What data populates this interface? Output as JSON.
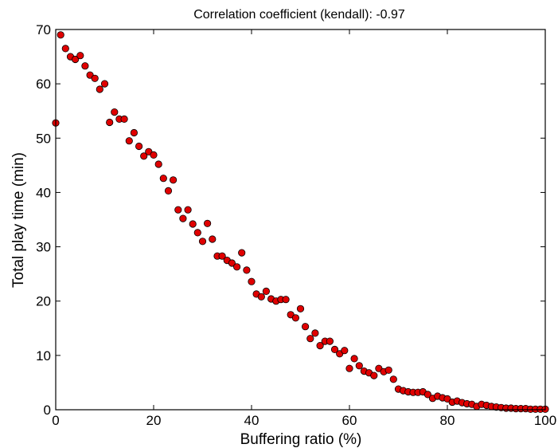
{
  "chart_data": {
    "type": "scatter",
    "title": "Correlation coefficient (kendall): -0.97",
    "xlabel": "Buffering ratio (%)",
    "ylabel": "Total play time (min)",
    "xlim": [
      0,
      100
    ],
    "ylim": [
      0,
      70
    ],
    "x_ticks": [
      0,
      20,
      40,
      60,
      80,
      100
    ],
    "y_ticks": [
      0,
      10,
      20,
      30,
      40,
      50,
      60,
      70
    ],
    "grid": false,
    "marker_color": "#e00000",
    "marker_edge_color": "#000000",
    "points": [
      [
        0,
        52.8
      ],
      [
        1,
        69
      ],
      [
        2,
        66.5
      ],
      [
        3,
        65
      ],
      [
        4,
        64.5
      ],
      [
        5,
        65.2
      ],
      [
        6,
        63.3
      ],
      [
        7,
        61.6
      ],
      [
        8,
        61
      ],
      [
        9,
        59
      ],
      [
        10,
        60
      ],
      [
        11,
        52.9
      ],
      [
        12,
        54.8
      ],
      [
        13,
        53.5
      ],
      [
        14,
        53.5
      ],
      [
        15,
        49.5
      ],
      [
        16,
        51
      ],
      [
        17,
        48.5
      ],
      [
        18,
        46.7
      ],
      [
        19,
        47.5
      ],
      [
        20,
        46.9
      ],
      [
        21,
        45.2
      ],
      [
        22,
        42.6
      ],
      [
        23,
        40.3
      ],
      [
        24,
        42.3
      ],
      [
        25,
        36.8
      ],
      [
        26,
        35.2
      ],
      [
        27,
        36.8
      ],
      [
        28,
        34.2
      ],
      [
        29,
        32.6
      ],
      [
        30,
        31
      ],
      [
        31,
        34.3
      ],
      [
        32,
        31.4
      ],
      [
        33,
        28.3
      ],
      [
        34,
        28.3
      ],
      [
        35,
        27.5
      ],
      [
        36,
        27
      ],
      [
        37,
        26.3
      ],
      [
        38,
        28.9
      ],
      [
        39,
        25.7
      ],
      [
        40,
        23.6
      ],
      [
        41,
        21.3
      ],
      [
        42,
        20.8
      ],
      [
        43,
        21.8
      ],
      [
        44,
        20.4
      ],
      [
        45,
        20
      ],
      [
        46,
        20.3
      ],
      [
        47,
        20.3
      ],
      [
        48,
        17.5
      ],
      [
        49,
        16.9
      ],
      [
        50,
        18.6
      ],
      [
        51,
        15.3
      ],
      [
        52,
        13.1
      ],
      [
        53,
        14.1
      ],
      [
        54,
        11.8
      ],
      [
        55,
        12.6
      ],
      [
        56,
        12.6
      ],
      [
        57,
        11.1
      ],
      [
        58,
        10.3
      ],
      [
        59,
        10.9
      ],
      [
        60,
        7.6
      ],
      [
        61,
        9.4
      ],
      [
        62,
        8.1
      ],
      [
        63,
        7.1
      ],
      [
        64,
        6.8
      ],
      [
        65,
        6.3
      ],
      [
        66,
        7.6
      ],
      [
        67,
        7
      ],
      [
        68,
        7.3
      ],
      [
        69,
        5.6
      ],
      [
        70,
        3.8
      ],
      [
        71,
        3.5
      ],
      [
        72,
        3.3
      ],
      [
        73,
        3.2
      ],
      [
        74,
        3.2
      ],
      [
        75,
        3.3
      ],
      [
        76,
        2.8
      ],
      [
        77,
        2.1
      ],
      [
        78,
        2.5
      ],
      [
        79,
        2.2
      ],
      [
        80,
        2
      ],
      [
        81,
        1.4
      ],
      [
        82,
        1.6
      ],
      [
        83,
        1.3
      ],
      [
        84,
        1.1
      ],
      [
        85,
        1
      ],
      [
        86,
        0.6
      ],
      [
        87,
        1
      ],
      [
        88,
        0.8
      ],
      [
        89,
        0.6
      ],
      [
        90,
        0.5
      ],
      [
        91,
        0.4
      ],
      [
        92,
        0.3
      ],
      [
        93,
        0.3
      ],
      [
        94,
        0.2
      ],
      [
        95,
        0.2
      ],
      [
        96,
        0.2
      ],
      [
        97,
        0.1
      ],
      [
        98,
        0.1
      ],
      [
        99,
        0.1
      ],
      [
        100,
        0.1
      ]
    ]
  }
}
